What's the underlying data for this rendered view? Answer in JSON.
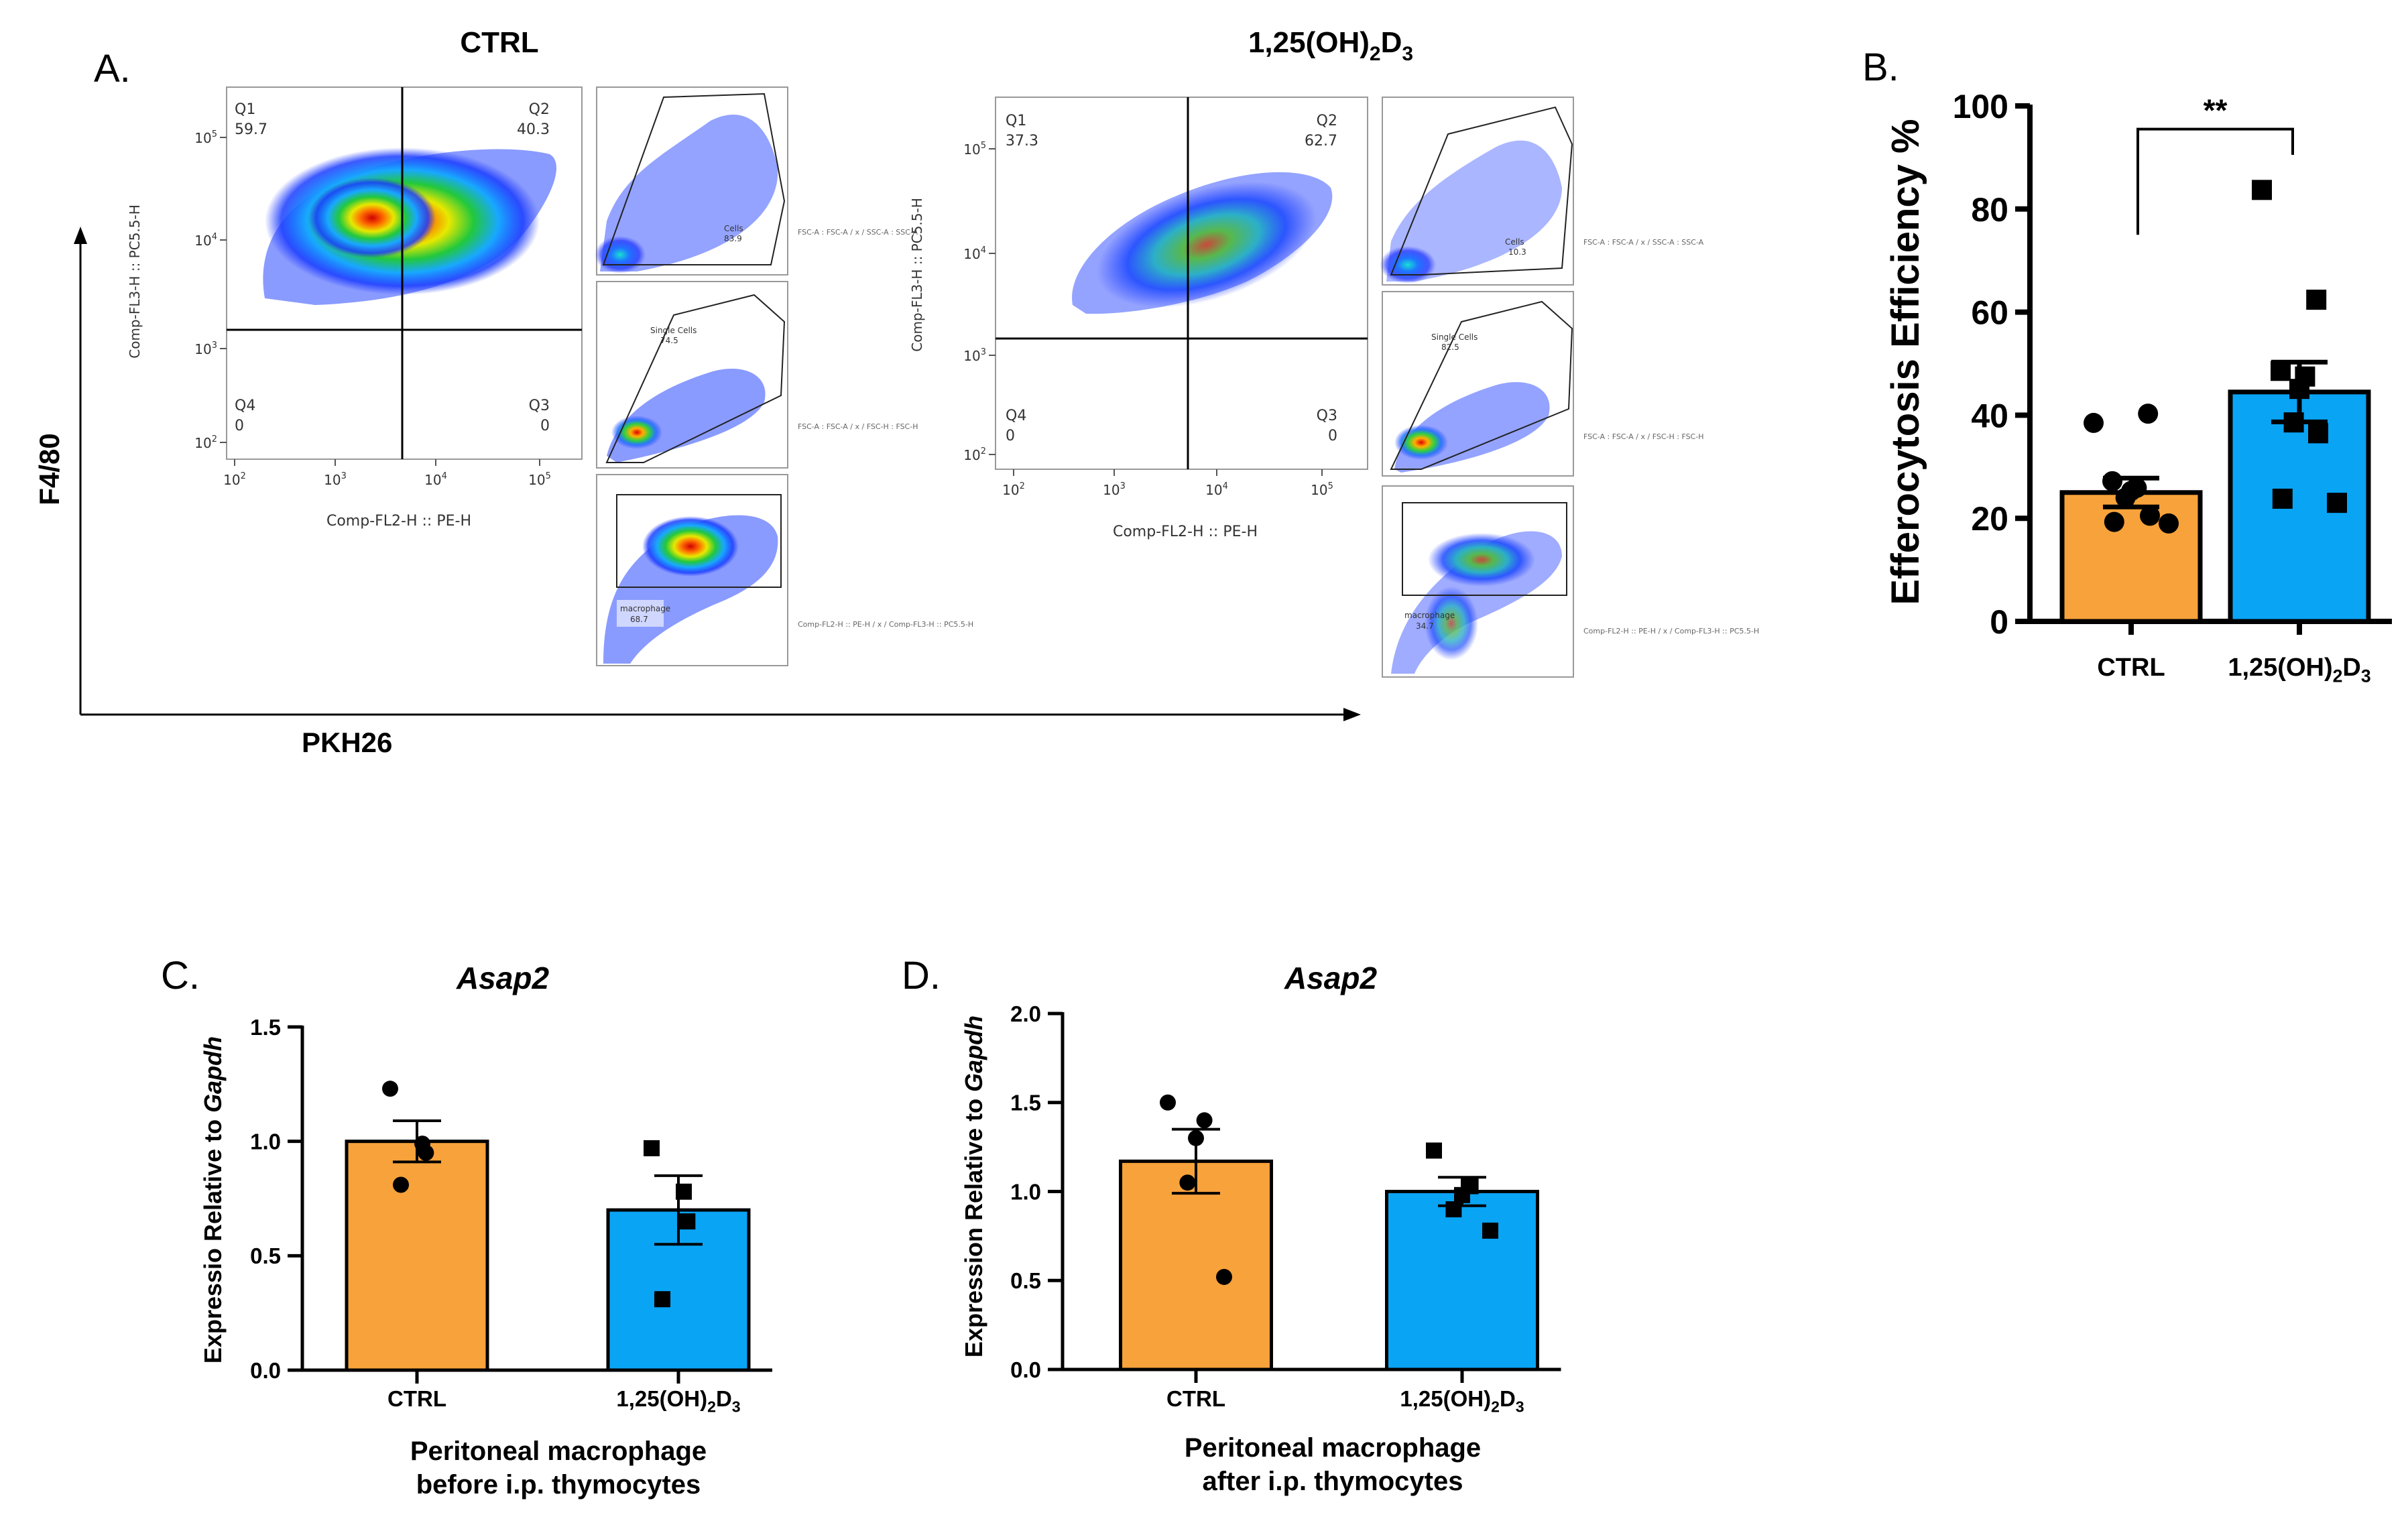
{
  "colors": {
    "ctrl": "#F7A23B",
    "treated": "#0AA4F5",
    "axis": "#000000",
    "gate": "#222222"
  },
  "panel_a": {
    "letter": "A.",
    "y_axis_label": "F4/80",
    "x_axis_label": "PKH26",
    "ctrl": {
      "title": "CTRL",
      "q1_name": "Q1",
      "q1_value": "59.7",
      "q2_name": "Q2",
      "q2_value": "40.3",
      "q3_name": "Q3",
      "q3_value": "0",
      "q4_name": "Q4",
      "q4_value": "0",
      "xlabel": "Comp-FL2-H :: PE-H",
      "ylabel": "Comp-FL3-H :: PC5.5-H",
      "gate1_name": "Cells",
      "gate1_value": "83.9",
      "gate1_axes": "FSC-A : FSC-A / x / SSC-A : SSC-A",
      "gate2_name": "Single Cells",
      "gate2_value": "74.5",
      "gate2_axes": "FSC-A : FSC-A / x / FSC-H : FSC-H",
      "gate3_name": "macrophage",
      "gate3_value": "68.7",
      "gate3_axes": "Comp-FL2-H :: PE-H / x / Comp-FL3-H :: PC5.5-H"
    },
    "treated": {
      "title_main": "1,25(OH)",
      "title_sub": "2",
      "title_end": "D",
      "title_sub2": "3",
      "q1_name": "Q1",
      "q1_value": "37.3",
      "q2_name": "Q2",
      "q2_value": "62.7",
      "q3_name": "Q3",
      "q3_value": "0",
      "q4_name": "Q4",
      "q4_value": "0",
      "xlabel": "Comp-FL2-H :: PE-H",
      "ylabel": "Comp-FL3-H :: PC5.5-H",
      "gate1_name": "Cells",
      "gate1_value": "10.3",
      "gate1_axes": "FSC-A : FSC-A / x / SSC-A : SSC-A",
      "gate2_name": "Single Cells",
      "gate2_value": "82.5",
      "gate2_axes": "FSC-A : FSC-A / x / FSC-H : FSC-H",
      "gate3_name": "macrophage",
      "gate3_value": "34.7",
      "gate3_axes": "Comp-FL2-H :: PE-H / x / Comp-FL3-H :: PC5.5-H"
    },
    "log_ticks": {
      "base": "10",
      "y_exps": [
        "2",
        "3",
        "4",
        "5"
      ],
      "x_exps": [
        "2",
        "3",
        "4",
        "5"
      ]
    }
  },
  "chart_data": [
    {
      "id": "B",
      "type": "bar",
      "letter": "B.",
      "title": "",
      "ylabel": "Efferocytosis Efficiency %",
      "xlabel": "",
      "categories": [
        "CTRL",
        "1,25(OH)2D3"
      ],
      "category_labels": [
        {
          "main": "CTRL",
          "s1": "",
          "mid": "",
          "s2": ""
        },
        {
          "main": "1,25(OH)",
          "s1": "2",
          "mid": "D",
          "s2": "3"
        }
      ],
      "values": [
        25,
        44.5
      ],
      "errors": [
        2.8,
        5.8
      ],
      "ylim": [
        0,
        100
      ],
      "yticks": [
        0,
        20,
        40,
        60,
        80,
        100
      ],
      "significance": "**",
      "points": [
        [
          38.5,
          40.3,
          27.2,
          25.9,
          25.3,
          24.0,
          20.5,
          19.3,
          19.0
        ],
        [
          83.7,
          62.4,
          48.6,
          47.5,
          45.1,
          38.6,
          36.5,
          23.8,
          23.0
        ]
      ]
    },
    {
      "id": "C",
      "type": "bar",
      "letter": "C.",
      "title": "Asap2",
      "ylabel_main": "Expressio Relative to ",
      "ylabel_gene": "Gapdh",
      "xlabel": "Peritoneal macrophage",
      "xlabel2": "before i.p. thymocytes",
      "categories": [
        "CTRL",
        "1,25(OH)2D3"
      ],
      "category_labels": [
        {
          "main": "CTRL",
          "s1": "",
          "mid": "",
          "s2": ""
        },
        {
          "main": "1,25(OH)",
          "s1": "2",
          "mid": "D",
          "s2": "3"
        }
      ],
      "values": [
        1.0,
        0.7
      ],
      "errors": [
        0.09,
        0.15
      ],
      "ylim": [
        0,
        1.5
      ],
      "yticks": [
        0.0,
        0.5,
        1.0,
        1.5
      ],
      "tick_labels": [
        "0.0",
        "0.5",
        "1.0",
        "1.5"
      ],
      "points": [
        [
          1.23,
          0.99,
          0.95,
          0.81
        ],
        [
          0.97,
          0.78,
          0.65,
          0.31
        ]
      ]
    },
    {
      "id": "D",
      "type": "bar",
      "letter": "D.",
      "title": "Asap2",
      "ylabel_main": "Expression Relative to ",
      "ylabel_gene": "Gapdh",
      "xlabel": "Peritoneal macrophage",
      "xlabel2": "after i.p. thymocytes",
      "categories": [
        "CTRL",
        "1,25(OH)2D3"
      ],
      "category_labels": [
        {
          "main": "CTRL",
          "s1": "",
          "mid": "",
          "s2": ""
        },
        {
          "main": "1,25(OH)",
          "s1": "2",
          "mid": "D",
          "s2": "3"
        }
      ],
      "values": [
        1.17,
        1.0
      ],
      "errors": [
        0.18,
        0.08
      ],
      "ylim": [
        0,
        2.0
      ],
      "yticks": [
        0.0,
        0.5,
        1.0,
        1.5,
        2.0
      ],
      "tick_labels": [
        "0.0",
        "0.5",
        "1.0",
        "1.5",
        "2.0"
      ],
      "points": [
        [
          1.5,
          1.4,
          1.3,
          1.05,
          0.52
        ],
        [
          1.23,
          1.03,
          0.98,
          0.9,
          0.78
        ]
      ]
    }
  ]
}
